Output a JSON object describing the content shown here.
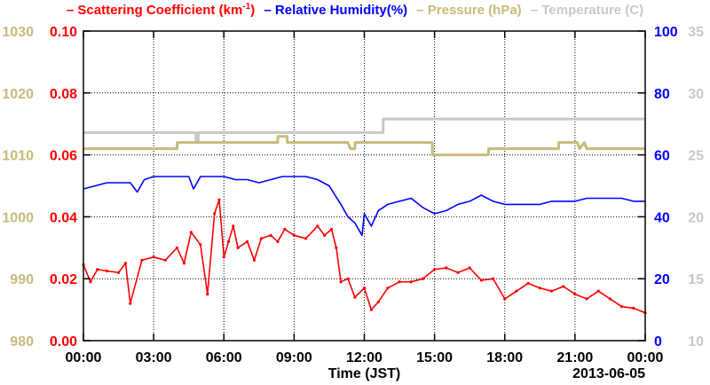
{
  "chart_data": {
    "type": "line",
    "xlabel": "Time (JST)",
    "date_label": "2013-06-05",
    "x_ticks": [
      "00:00",
      "03:00",
      "06:00",
      "09:00",
      "12:00",
      "15:00",
      "18:00",
      "21:00",
      "00:00"
    ],
    "x_range_hours": [
      0,
      24
    ],
    "grid": true,
    "legend_placement": "top",
    "series": [
      {
        "name": "Scattering Coefficient",
        "unit": "km",
        "unit_exp": "-1",
        "color": "#ff0000",
        "axis": "left-inner",
        "range": [
          0,
          0.1
        ],
        "ticks": [
          "0.00",
          "0.02",
          "0.04",
          "0.06",
          "0.08",
          "0.10"
        ],
        "x": [
          0,
          0.3,
          0.6,
          1,
          1.5,
          1.8,
          2,
          2.5,
          3,
          3.5,
          4,
          4.3,
          4.6,
          5,
          5.3,
          5.6,
          5.8,
          6,
          6.2,
          6.4,
          6.6,
          7,
          7.3,
          7.6,
          8,
          8.3,
          8.6,
          9,
          9.5,
          10,
          10.3,
          10.6,
          10.8,
          11,
          11.3,
          11.6,
          12,
          12.3,
          12.6,
          13,
          13.5,
          14,
          14.5,
          15,
          15.5,
          16,
          16.5,
          17,
          17.5,
          18,
          18.5,
          19,
          19.5,
          20,
          20.5,
          21,
          21.5,
          22,
          22.5,
          23,
          23.5,
          24
        ],
        "values": [
          0.0245,
          0.019,
          0.023,
          0.0225,
          0.022,
          0.025,
          0.012,
          0.026,
          0.027,
          0.026,
          0.03,
          0.025,
          0.035,
          0.031,
          0.015,
          0.041,
          0.0455,
          0.027,
          0.032,
          0.037,
          0.03,
          0.032,
          0.026,
          0.033,
          0.034,
          0.032,
          0.036,
          0.034,
          0.033,
          0.037,
          0.034,
          0.036,
          0.03,
          0.019,
          0.02,
          0.014,
          0.017,
          0.01,
          0.0125,
          0.017,
          0.019,
          0.019,
          0.02,
          0.023,
          0.0235,
          0.022,
          0.0235,
          0.0195,
          0.02,
          0.0135,
          0.016,
          0.0185,
          0.017,
          0.016,
          0.0175,
          0.015,
          0.0135,
          0.016,
          0.0135,
          0.011,
          0.0105,
          0.009
        ]
      },
      {
        "name": "Relative Humidity(%)",
        "color": "#0000ff",
        "axis": "right-inner",
        "range": [
          0,
          100
        ],
        "ticks": [
          "0",
          "20",
          "40",
          "60",
          "80",
          "100"
        ],
        "x": [
          0,
          0.5,
          1,
          1.5,
          2,
          2.3,
          2.6,
          3,
          3.5,
          4,
          4.5,
          4.7,
          5,
          5.5,
          6,
          6.5,
          7,
          7.5,
          8,
          8.5,
          9,
          9.5,
          10,
          10.5,
          11,
          11.3,
          11.6,
          11.9,
          12,
          12.3,
          12.6,
          13,
          13.5,
          14,
          14.5,
          15,
          15.5,
          16,
          16.5,
          17,
          17.5,
          18,
          18.5,
          19,
          19.5,
          20,
          20.5,
          21,
          21.5,
          22,
          22.5,
          23,
          23.5,
          24
        ],
        "values": [
          49,
          50,
          51,
          51,
          51,
          48,
          52,
          53,
          53,
          53,
          53,
          49,
          53,
          53,
          53,
          52,
          52,
          51,
          52,
          53,
          53,
          53,
          52,
          50,
          44,
          40,
          38,
          34,
          41,
          37,
          42,
          44,
          45,
          46,
          43,
          41,
          42,
          44,
          45,
          47,
          45,
          44,
          44,
          44,
          44,
          45,
          45,
          45,
          46,
          46,
          46,
          46,
          45,
          45
        ]
      },
      {
        "name": "Pressure (hPa)",
        "color": "#c8bb7a",
        "axis": "left-outer",
        "range": [
          980,
          1030
        ],
        "ticks": [
          "980",
          "990",
          "1000",
          "1010",
          "1020",
          "1030"
        ],
        "x": [
          0,
          4,
          4.01,
          8.3,
          8.31,
          8.7,
          8.71,
          11.3,
          11.4,
          11.6,
          11.61,
          14.9,
          14.91,
          17.3,
          17.31,
          20.3,
          20.31,
          21.1,
          21.2,
          21.4,
          21.5,
          21.7,
          21.71,
          24
        ],
        "values": [
          1011,
          1011,
          1012,
          1012,
          1013,
          1013,
          1012,
          1012,
          1011,
          1011,
          1012,
          1012,
          1010,
          1010,
          1011,
          1011,
          1012,
          1012,
          1011,
          1012,
          1011,
          1011,
          1011,
          1011
        ]
      },
      {
        "name": "Temperature (C)",
        "color": "#c8c8c8",
        "axis": "right-outer",
        "range": [
          10,
          35
        ],
        "ticks": [
          "10",
          "15",
          "20",
          "25",
          "30",
          "35"
        ],
        "x": [
          0,
          4.8,
          4.81,
          4.9,
          4.91,
          7,
          7.01,
          12.8,
          12.81,
          24
        ],
        "values": [
          26.8,
          26.8,
          26.0,
          26.0,
          26.8,
          26.8,
          26.8,
          26.8,
          27.9,
          27.9
        ]
      }
    ]
  }
}
